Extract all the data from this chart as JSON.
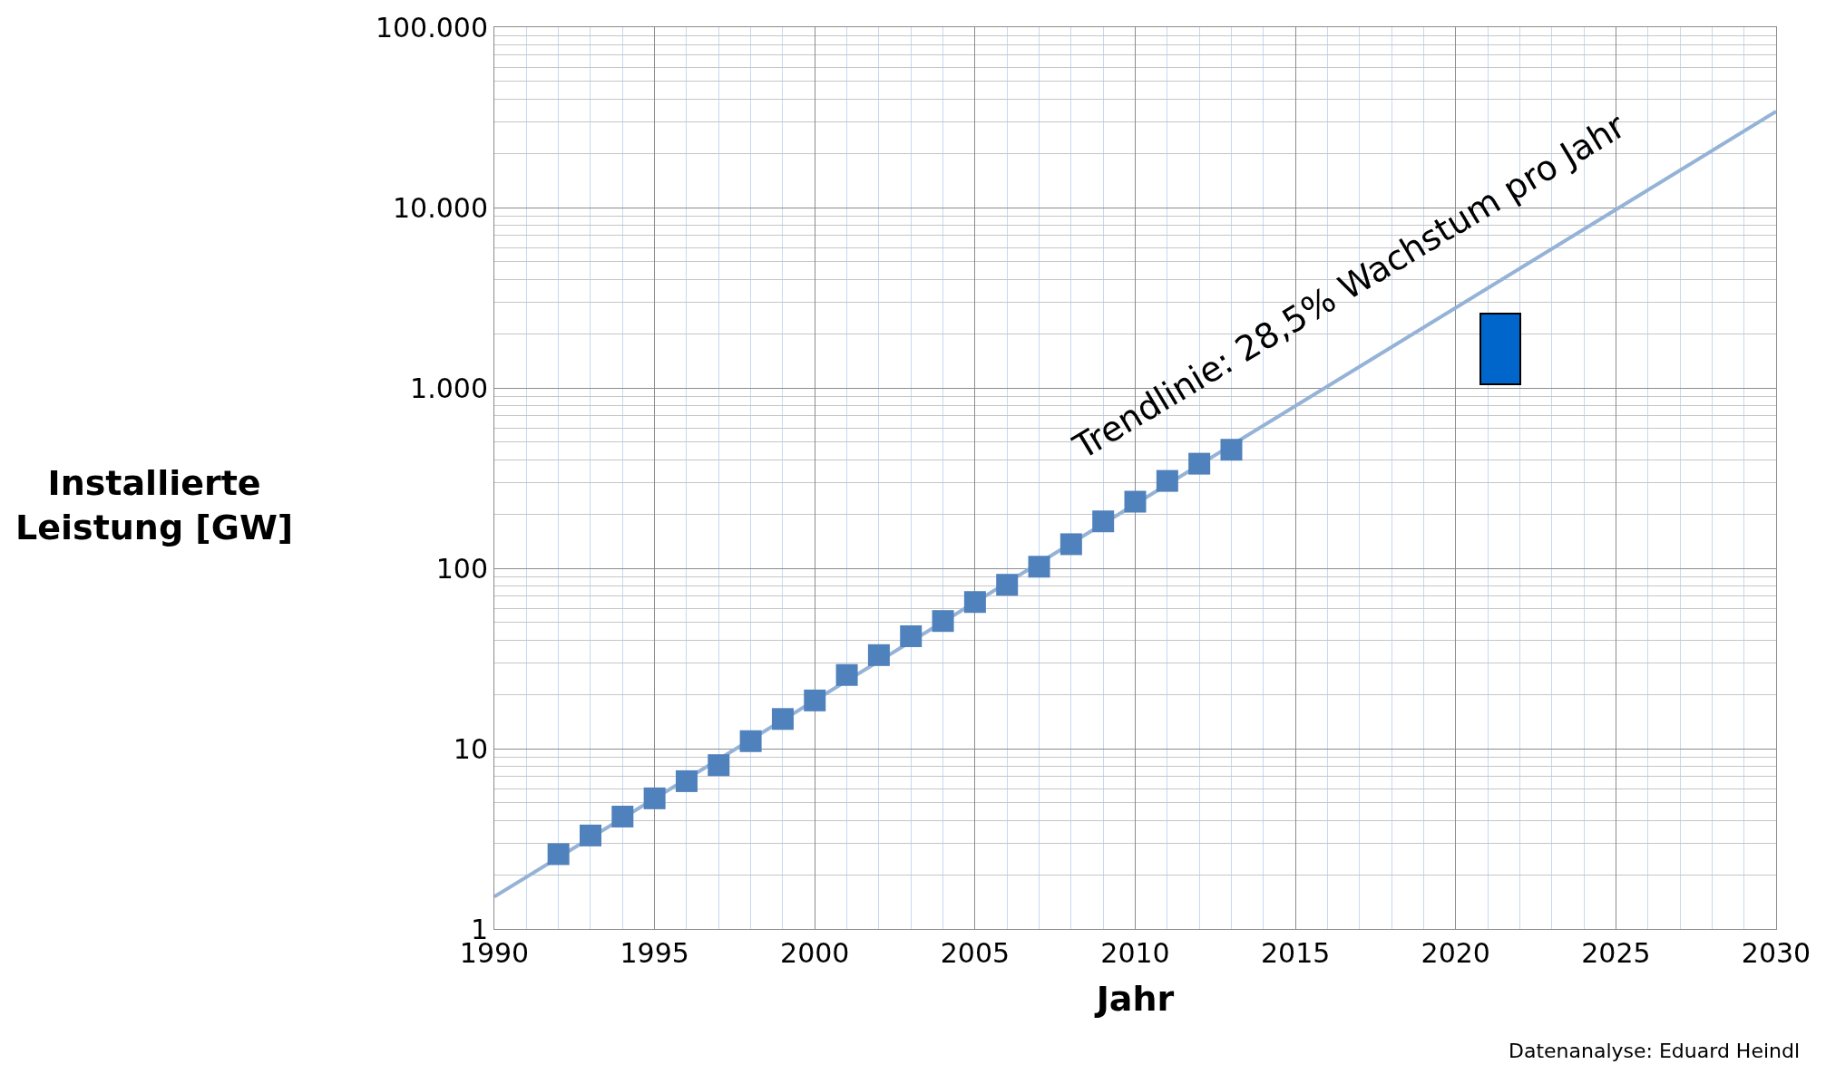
{
  "chart_data": {
    "type": "scatter",
    "xlabel": "Jahr",
    "ylabel": "Installierte\nLeistung [GW]",
    "log": "y",
    "grid": true,
    "xlim": [
      1990,
      2030
    ],
    "xticks": [
      1990,
      {
        "value": 1991,
        "label": null
      },
      {
        "value": 1992,
        "label": null
      },
      {
        "value": 1993,
        "label": null
      },
      {
        "value": 1994,
        "label": null
      },
      1995,
      {
        "value": 1996,
        "label": null
      },
      {
        "value": 1997,
        "label": null
      },
      {
        "value": 1998,
        "label": null
      },
      {
        "value": 1999,
        "label": null
      },
      2000,
      {
        "value": 2001,
        "label": null
      },
      {
        "value": 2002,
        "label": null
      },
      {
        "value": 2003,
        "label": null
      },
      {
        "value": 2004,
        "label": null
      },
      2005,
      {
        "value": 2006,
        "label": null
      },
      {
        "value": 2007,
        "label": null
      },
      {
        "value": 2008,
        "label": null
      },
      {
        "value": 2009,
        "label": null
      },
      2010,
      {
        "value": 2011,
        "label": null
      },
      {
        "value": 2012,
        "label": null
      },
      {
        "value": 2013,
        "label": null
      },
      {
        "value": 2014,
        "label": null
      },
      2015,
      {
        "value": 2016,
        "label": null
      },
      {
        "value": 2017,
        "label": null
      },
      {
        "value": 2018,
        "label": null
      },
      {
        "value": 2019,
        "label": null
      },
      2020,
      {
        "value": 2021,
        "label": null
      },
      {
        "value": 2022,
        "label": null
      },
      {
        "value": 2023,
        "label": null
      },
      {
        "value": 2024,
        "label": null
      },
      2025,
      {
        "value": 2026,
        "label": null
      },
      {
        "value": 2027,
        "label": null
      },
      {
        "value": 2028,
        "label": null
      },
      {
        "value": 2029,
        "label": null
      },
      2030
    ],
    "ylim": [
      1,
      100000
    ],
    "yticks": [
      1,
      10,
      100,
      {
        "value": 1000,
        "label": "1.000"
      },
      {
        "value": 10000,
        "label": "10.000"
      },
      {
        "value": 100000,
        "label": "100.000"
      }
    ],
    "series": [
      {
        "type": "line",
        "color": "#95b3d7",
        "x": [
          1990,
          2030
        ],
        "values": [
          1.51,
          34100
        ],
        "marker": "none",
        "line_style": "solid"
      },
      {
        "type": "bar",
        "color": "#0066cc",
        "x": [
          2021.4
        ],
        "base": [
          1050
        ],
        "values": [
          1520
        ]
      },
      {
        "color": "#4f81bd",
        "marker": "square",
        "x": [
          1992,
          1993,
          1994,
          1995,
          1996,
          1997,
          1998,
          1999,
          2000,
          2001,
          2002,
          2003,
          2004,
          2005,
          2006,
          2007,
          2008,
          2009,
          2010,
          2011,
          2012,
          2013
        ],
        "values": [
          2.6,
          3.3,
          4.2,
          5.3,
          6.6,
          8.1,
          11,
          14.6,
          18.5,
          25.6,
          33,
          42,
          51,
          65,
          81,
          102,
          136,
          182,
          234,
          305,
          380,
          454
        ]
      }
    ],
    "annotations": [
      "Trendlinie: 28,5% Wachstum pro Jahr",
      "Datenanalyse: Eduard Heindl"
    ]
  }
}
